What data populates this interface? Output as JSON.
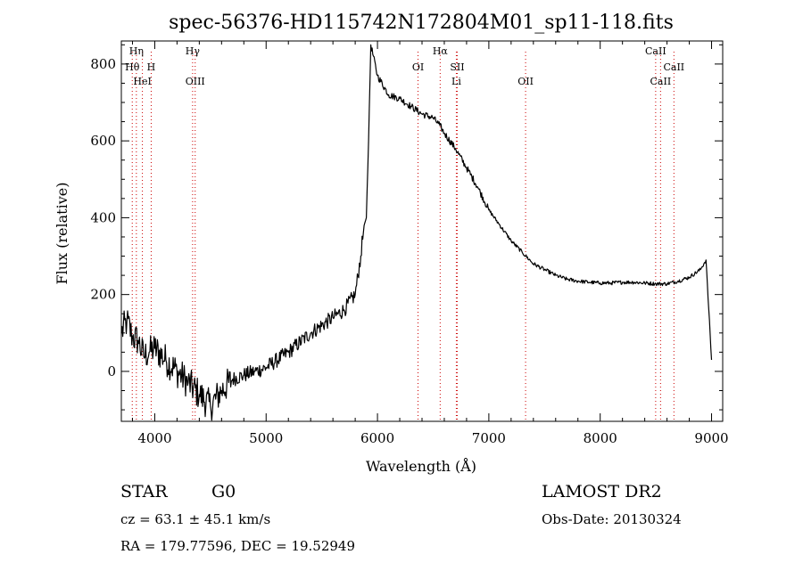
{
  "chart_data": {
    "type": "line",
    "title": "spec-56376-HD115742N172804M01_sp11-118.fits",
    "xlabel": "Wavelength (Å)",
    "ylabel": "Flux (relative)",
    "xlim": [
      3700,
      9100
    ],
    "ylim": [
      -130,
      860
    ],
    "xticks": [
      4000,
      5000,
      6000,
      7000,
      8000,
      9000
    ],
    "yticks": [
      0,
      200,
      400,
      600,
      800
    ],
    "grid": false,
    "colors": {
      "spectrum": "#000000",
      "line_marker": "#cc0000"
    },
    "spectral_lines": [
      {
        "name": "Hη",
        "wavelength": 3835,
        "row": 0
      },
      {
        "name": "Hθ",
        "wavelength": 3798,
        "row": 1
      },
      {
        "name": "H",
        "wavelength": 3968,
        "row": 1
      },
      {
        "name": "HeI",
        "wavelength": 3889,
        "row": 2
      },
      {
        "name": "Hγ",
        "wavelength": 4340,
        "row": 0
      },
      {
        "name": "OIII",
        "wavelength": 4363,
        "row": 2
      },
      {
        "name": "OI",
        "wavelength": 6364,
        "row": 1
      },
      {
        "name": "Hα",
        "wavelength": 6563,
        "row": 0
      },
      {
        "name": "SII",
        "wavelength": 6716,
        "row": 1
      },
      {
        "name": "Li",
        "wavelength": 6708,
        "row": 2
      },
      {
        "name": "OII",
        "wavelength": 7330,
        "row": 2
      },
      {
        "name": "CaII",
        "wavelength": 8498,
        "row": 0
      },
      {
        "name": "CaII",
        "wavelength": 8662,
        "row": 1
      },
      {
        "name": "CaII",
        "wavelength": 8542,
        "row": 2
      }
    ],
    "series": [
      {
        "x": [
          3700,
          3750,
          3800,
          3850,
          3900,
          3950,
          4000,
          4100,
          4200,
          4300,
          4400,
          4500,
          4600,
          4700,
          4800,
          4900,
          5000,
          5200,
          5400,
          5600,
          5700,
          5800,
          5850,
          5880,
          5900,
          5920,
          5940,
          6000,
          6100,
          6200,
          6300,
          6400,
          6500,
          6560,
          6600,
          6700,
          6800,
          6900,
          7000,
          7100,
          7200,
          7300,
          7400,
          7500,
          7600,
          7700,
          7800,
          7900,
          8000,
          8100,
          8200,
          8300,
          8400,
          8500,
          8600,
          8700,
          8800,
          8900,
          8950,
          9000
        ],
        "y": [
          100,
          130,
          90,
          80,
          40,
          50,
          60,
          30,
          0,
          -30,
          -60,
          -90,
          -50,
          -20,
          -10,
          0,
          10,
          50,
          100,
          140,
          160,
          200,
          300,
          380,
          400,
          600,
          850,
          770,
          720,
          710,
          690,
          670,
          660,
          640,
          620,
          580,
          530,
          480,
          420,
          380,
          340,
          310,
          280,
          265,
          250,
          240,
          235,
          232,
          230,
          230,
          232,
          232,
          230,
          228,
          228,
          235,
          245,
          265,
          290,
          30
        ]
      }
    ]
  },
  "info": {
    "class_label": "STAR",
    "subclass": "G0",
    "survey": "LAMOST DR2",
    "cz": "cz = 63.1 ± 45.1 km/s",
    "obs_date": "Obs-Date: 20130324",
    "radec": "RA = 179.77596, DEC =  19.52949"
  }
}
